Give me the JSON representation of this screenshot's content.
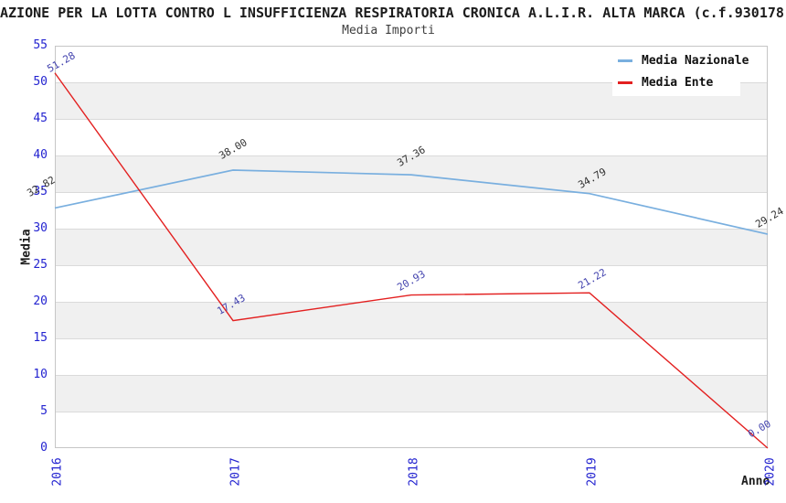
{
  "title": "AZIONE PER LA LOTTA CONTRO L INSUFFICIENZA RESPIRATORIA CRONICA A.L.I.R. ALTA MARCA (c.f.930178",
  "subtitle": "Media Importi",
  "legend": {
    "items": [
      {
        "label": "Media Nazionale",
        "color": "#79afdf"
      },
      {
        "label": "Media Ente",
        "color": "#e32020"
      }
    ]
  },
  "axes": {
    "y_title": "Media",
    "x_title": "Anno",
    "y_ticks": [
      0,
      5,
      10,
      15,
      20,
      25,
      30,
      35,
      40,
      45,
      50,
      55
    ],
    "x_ticks": [
      "2016",
      "2017",
      "2018",
      "2019",
      "2020"
    ],
    "tick_color": "#2323d0"
  },
  "chart_data": {
    "type": "line",
    "title": "Media Importi",
    "x": [
      "2016",
      "2017",
      "2018",
      "2019",
      "2020"
    ],
    "series": [
      {
        "name": "Media Nazionale",
        "color": "#79afdf",
        "label_color": "#303030",
        "values": [
          32.82,
          38.0,
          37.36,
          34.79,
          29.24
        ]
      },
      {
        "name": "Media Ente",
        "color": "#e32020",
        "label_color": "#4343ae",
        "values": [
          51.28,
          17.43,
          20.93,
          21.22,
          0.0
        ]
      }
    ],
    "xlabel": "Anno",
    "ylabel": "Media",
    "ylim": [
      0,
      55
    ],
    "ytick_step": 5,
    "grid": "horizontal-bands",
    "band_colors": [
      "#ffffff",
      "#f0f0f0"
    ],
    "plot_border_color": "#c6c6c6",
    "legend_position": "top-right",
    "value_labels": true,
    "value_label_rotation": -30,
    "value_label_format": "0.00"
  }
}
